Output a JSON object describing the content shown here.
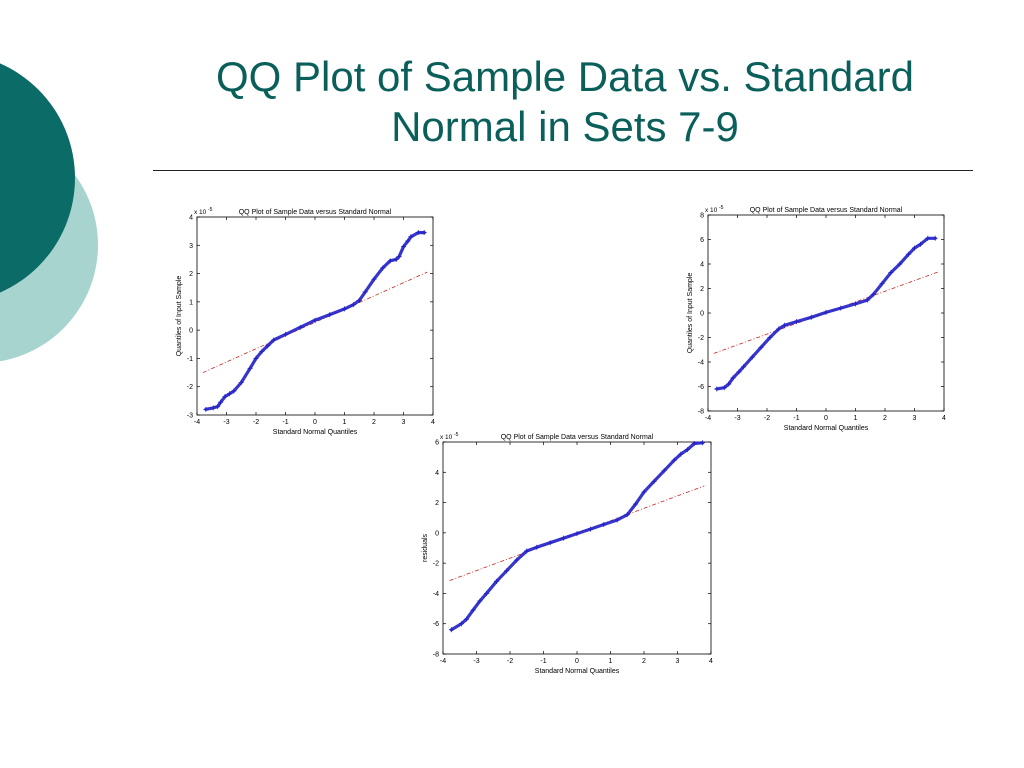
{
  "slide": {
    "title": "QQ Plot of Sample Data vs. Standard Normal in Sets 7-9"
  },
  "colors": {
    "accent_dark": "#0b6b66",
    "accent_light": "#a8d4d0",
    "title": "#0b5f5b",
    "points": "#2020c8",
    "fit_line": "#cc2222"
  },
  "chart_data": [
    {
      "type": "scatter",
      "title": "QQ Plot of Sample Data versus Standard Normal",
      "xlabel": "Standard Normal Quantiles",
      "ylabel": "Quantiles of Input Sample",
      "multiplier": "x 10",
      "exponent": "-5",
      "xlim": [
        -4,
        4
      ],
      "ylim": [
        -3,
        4
      ],
      "xticks": [
        -4,
        -3,
        -2,
        -1,
        0,
        1,
        2,
        3,
        4
      ],
      "yticks": [
        -3,
        -2,
        -1,
        0,
        1,
        2,
        3,
        4
      ],
      "points": [
        [
          -3.7,
          -2.8
        ],
        [
          -3.45,
          -2.75
        ],
        [
          -3.3,
          -2.7
        ],
        [
          -3.2,
          -2.55
        ],
        [
          -3.05,
          -2.35
        ],
        [
          -2.9,
          -2.25
        ],
        [
          -2.75,
          -2.15
        ],
        [
          -2.5,
          -1.85
        ],
        [
          -2.2,
          -1.35
        ],
        [
          -2.0,
          -1.0
        ],
        [
          -1.8,
          -0.75
        ],
        [
          -1.6,
          -0.55
        ],
        [
          -1.4,
          -0.35
        ],
        [
          -1.0,
          -0.15
        ],
        [
          -0.5,
          0.1
        ],
        [
          0,
          0.35
        ],
        [
          0.5,
          0.55
        ],
        [
          1.0,
          0.75
        ],
        [
          1.3,
          0.9
        ],
        [
          1.5,
          1.05
        ],
        [
          1.7,
          1.35
        ],
        [
          2.0,
          1.8
        ],
        [
          2.3,
          2.2
        ],
        [
          2.55,
          2.45
        ],
        [
          2.75,
          2.5
        ],
        [
          2.85,
          2.6
        ],
        [
          3.0,
          2.95
        ],
        [
          3.15,
          3.15
        ],
        [
          3.25,
          3.3
        ],
        [
          3.5,
          3.45
        ],
        [
          3.7,
          3.45
        ]
      ],
      "fit_line": [
        [
          -3.8,
          -1.5
        ],
        [
          3.8,
          2.05
        ]
      ]
    },
    {
      "type": "scatter",
      "title": "QQ Plot of Sample Data versus Standard Normal",
      "xlabel": "Standard Normal Quantiles",
      "ylabel": "Quantiles of Input Sample",
      "multiplier": "x 10",
      "exponent": "-5",
      "xlim": [
        -4,
        4
      ],
      "ylim": [
        -8,
        8
      ],
      "xticks": [
        -4,
        -3,
        -2,
        -1,
        0,
        1,
        2,
        3,
        4
      ],
      "yticks": [
        -8,
        -6,
        -4,
        -2,
        0,
        2,
        4,
        6,
        8
      ],
      "points": [
        [
          -3.7,
          -6.2
        ],
        [
          -3.45,
          -6.1
        ],
        [
          -3.3,
          -5.8
        ],
        [
          -3.15,
          -5.3
        ],
        [
          -2.95,
          -4.8
        ],
        [
          -2.8,
          -4.4
        ],
        [
          -2.5,
          -3.6
        ],
        [
          -2.2,
          -2.8
        ],
        [
          -1.9,
          -2.0
        ],
        [
          -1.6,
          -1.3
        ],
        [
          -1.4,
          -1.0
        ],
        [
          -1.0,
          -0.7
        ],
        [
          -0.5,
          -0.35
        ],
        [
          0,
          0.05
        ],
        [
          0.5,
          0.4
        ],
        [
          1.0,
          0.75
        ],
        [
          1.4,
          1.05
        ],
        [
          1.6,
          1.5
        ],
        [
          1.9,
          2.4
        ],
        [
          2.2,
          3.3
        ],
        [
          2.5,
          4.0
        ],
        [
          2.8,
          4.8
        ],
        [
          3.0,
          5.3
        ],
        [
          3.2,
          5.6
        ],
        [
          3.45,
          6.1
        ],
        [
          3.7,
          6.1
        ]
      ],
      "fit_line": [
        [
          -3.8,
          -3.3
        ],
        [
          3.8,
          3.35
        ]
      ]
    },
    {
      "type": "scatter",
      "title": "QQ Plot of Sample Data versus Standard Normal",
      "xlabel": "Standard Normal Quantiles",
      "ylabel": "residuals",
      "multiplier": "x 10",
      "exponent": "-5",
      "xlim": [
        -4,
        4
      ],
      "ylim": [
        -8,
        6
      ],
      "xticks": [
        -4,
        -3,
        -2,
        -1,
        0,
        1,
        2,
        3,
        4
      ],
      "yticks": [
        -8,
        -6,
        -4,
        -2,
        0,
        2,
        4,
        6
      ],
      "points": [
        [
          -3.75,
          -6.4
        ],
        [
          -3.45,
          -6.0
        ],
        [
          -3.3,
          -5.7
        ],
        [
          -3.1,
          -5.1
        ],
        [
          -2.9,
          -4.5
        ],
        [
          -2.7,
          -4.0
        ],
        [
          -2.4,
          -3.2
        ],
        [
          -2.1,
          -2.5
        ],
        [
          -1.8,
          -1.8
        ],
        [
          -1.5,
          -1.2
        ],
        [
          -1.2,
          -0.95
        ],
        [
          -0.8,
          -0.65
        ],
        [
          -0.4,
          -0.35
        ],
        [
          0,
          -0.05
        ],
        [
          0.4,
          0.25
        ],
        [
          0.8,
          0.55
        ],
        [
          1.2,
          0.85
        ],
        [
          1.5,
          1.2
        ],
        [
          1.75,
          1.9
        ],
        [
          2.0,
          2.7
        ],
        [
          2.3,
          3.4
        ],
        [
          2.6,
          4.1
        ],
        [
          2.9,
          4.8
        ],
        [
          3.1,
          5.2
        ],
        [
          3.3,
          5.5
        ],
        [
          3.5,
          5.9
        ],
        [
          3.75,
          5.95
        ]
      ],
      "fit_line": [
        [
          -3.8,
          -3.15
        ],
        [
          3.8,
          3.1
        ]
      ]
    }
  ]
}
